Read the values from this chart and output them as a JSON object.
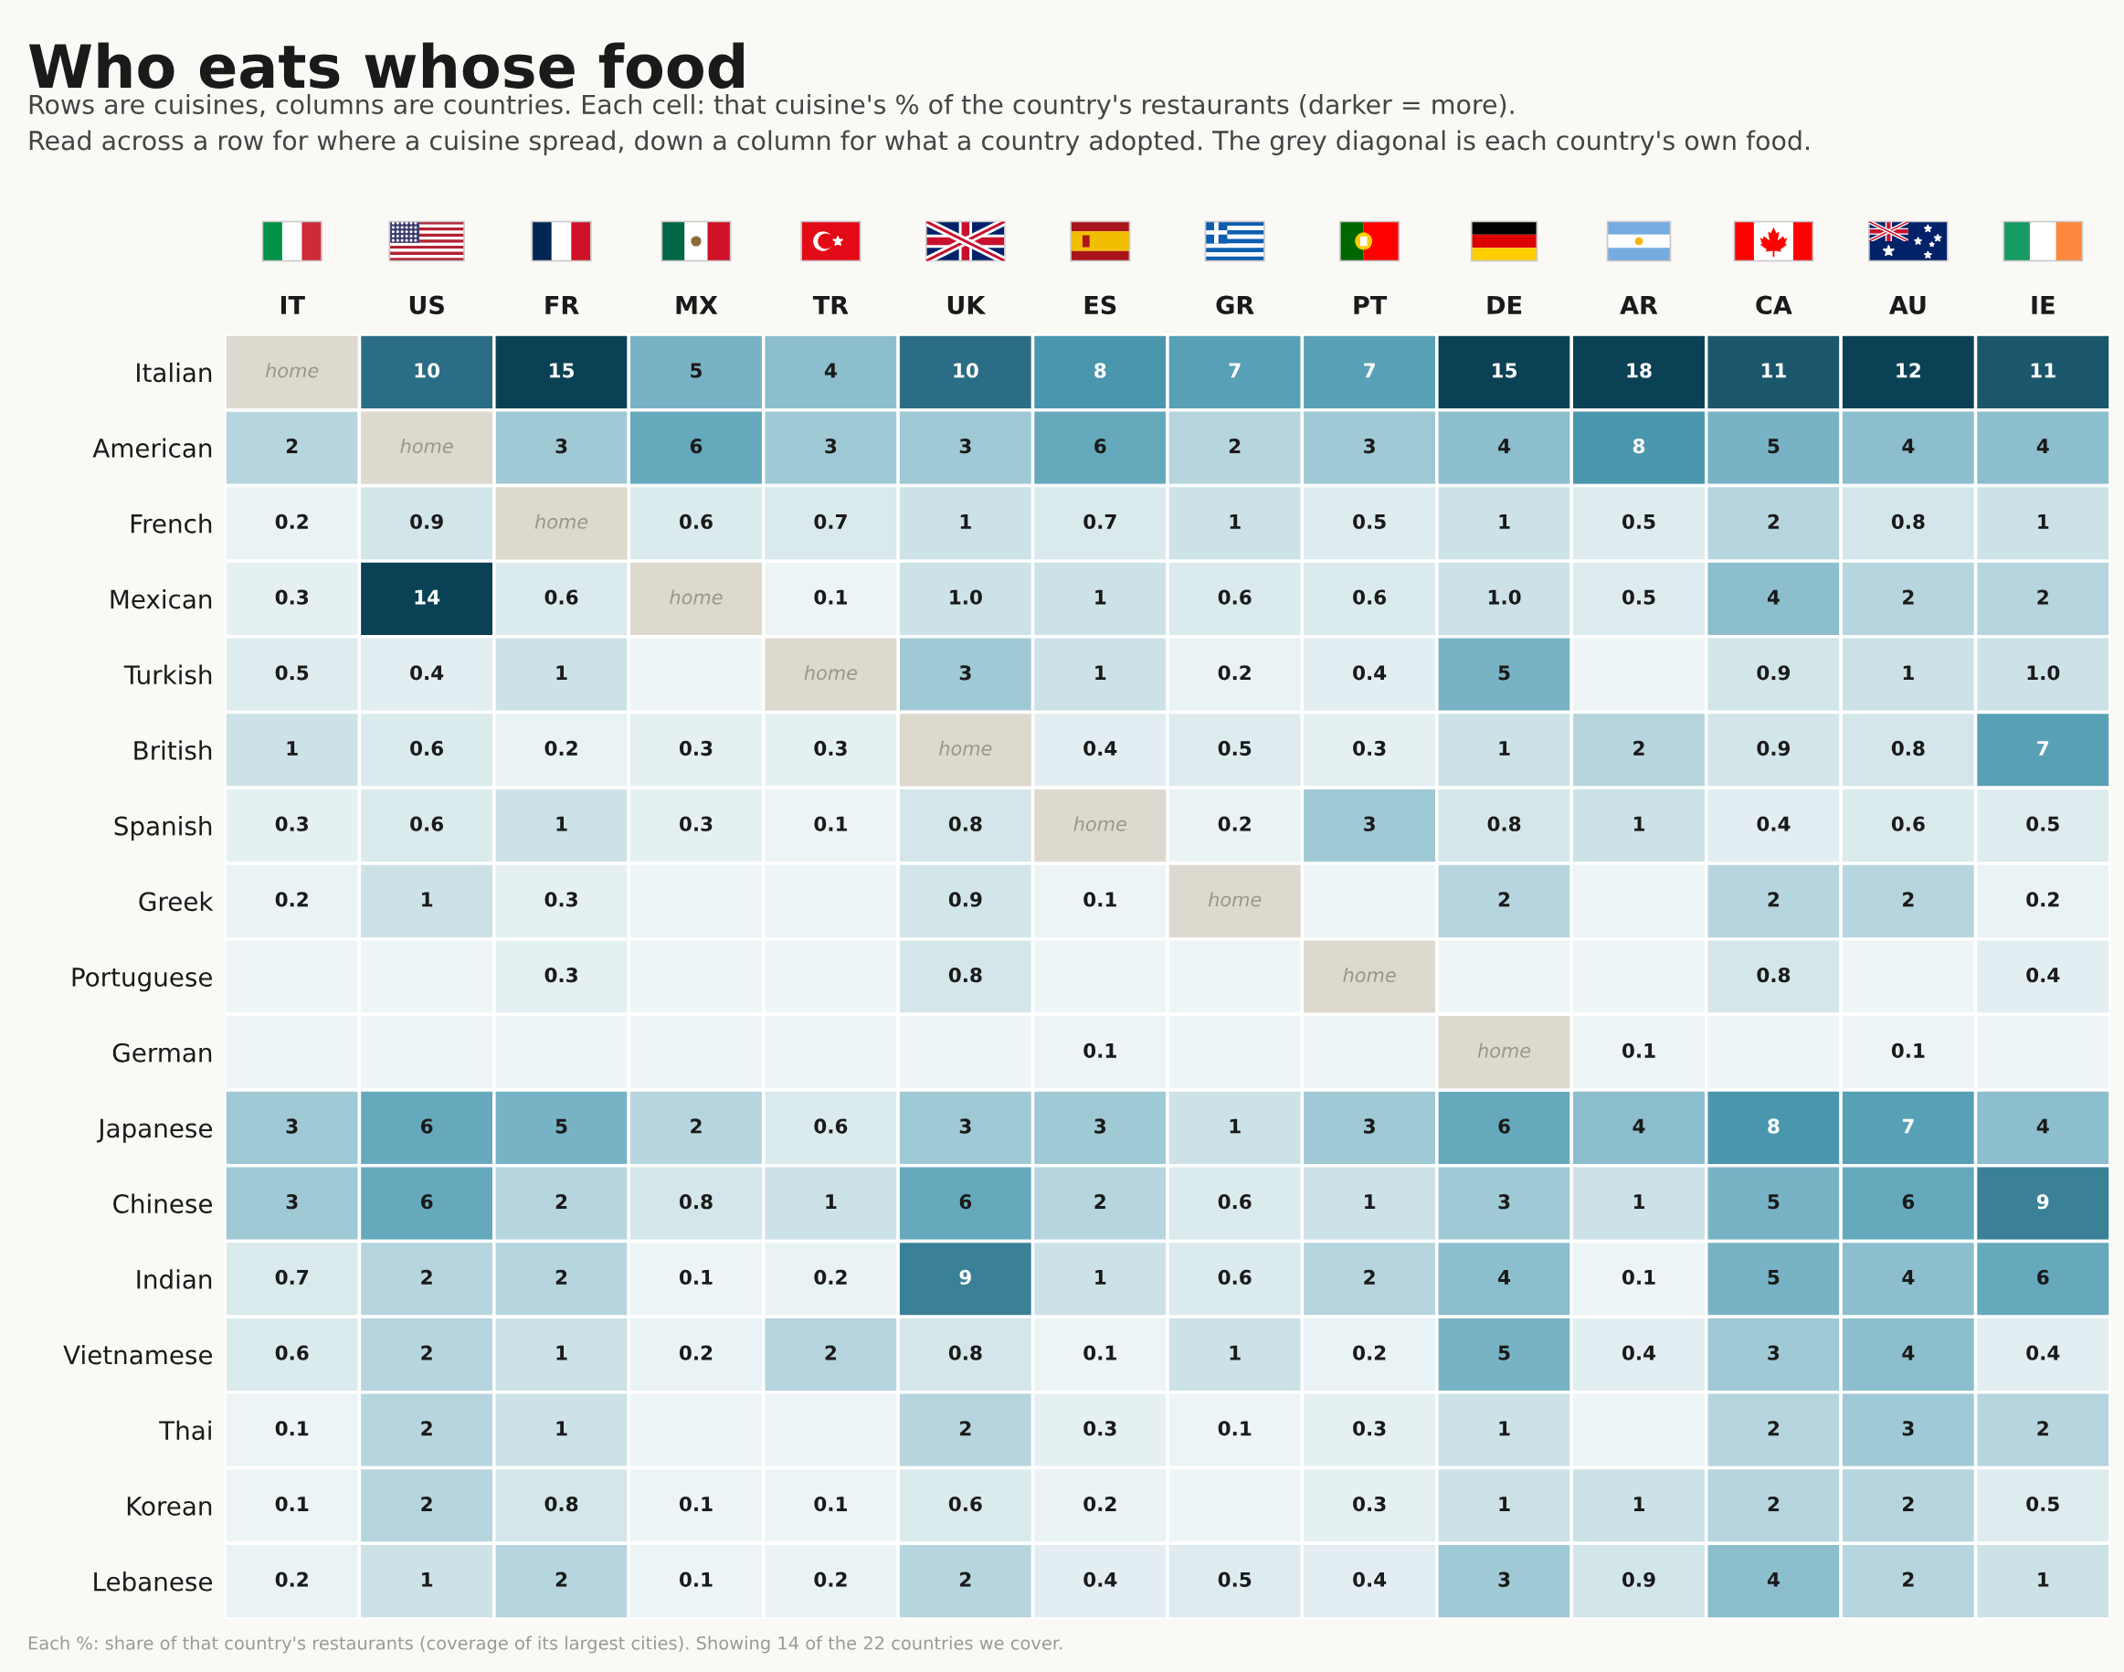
{
  "chart_data": {
    "type": "heatmap",
    "title": "Who eats whose food",
    "subtitle": "Rows are cuisines, columns are countries. Each cell: that cuisine's % of the country's restaurants (darker = more).\nRead across a row for where a cuisine spread, down a column for what a country adopted. The grey diagonal is each country's own food.",
    "annotations": [
      "Each %: share of that country's restaurants (coverage of its largest cities). Showing 14 of the 22 countries we cover."
    ],
    "categories": [
      "IT",
      "US",
      "FR",
      "MX",
      "TR",
      "UK",
      "ES",
      "GR",
      "PT",
      "DE",
      "AR",
      "CA",
      "AU",
      "IE"
    ],
    "y_categories": [
      "Italian",
      "American",
      "French",
      "Mexican",
      "Turkish",
      "British",
      "Spanish",
      "Greek",
      "Portuguese",
      "German",
      "Japanese",
      "Chinese",
      "Indian",
      "Vietnamese",
      "Thai",
      "Korean",
      "Lebanese"
    ],
    "cells": [
      [
        null,
        10,
        15,
        5,
        4,
        10,
        8,
        7,
        7,
        15,
        18,
        11,
        12,
        11
      ],
      [
        2,
        null,
        3,
        6,
        3,
        3,
        6,
        2,
        3,
        4,
        8,
        5,
        4,
        4
      ],
      [
        0.2,
        0.9,
        null,
        0.6,
        0.7,
        1,
        0.7,
        1,
        0.5,
        1,
        0.5,
        2,
        0.8,
        1
      ],
      [
        0.3,
        14,
        0.6,
        null,
        0.1,
        1.0,
        1,
        0.6,
        0.6,
        1.0,
        0.5,
        4,
        2,
        2
      ],
      [
        0.5,
        0.4,
        1,
        null,
        null,
        3,
        1,
        0.2,
        0.4,
        5,
        null,
        0.9,
        1,
        1.0
      ],
      [
        1,
        0.6,
        0.2,
        0.3,
        0.3,
        null,
        0.4,
        0.5,
        0.3,
        1,
        2,
        0.9,
        0.8,
        7
      ],
      [
        0.3,
        0.6,
        1,
        0.3,
        0.1,
        0.8,
        null,
        0.2,
        3,
        0.8,
        1,
        0.4,
        0.6,
        0.5
      ],
      [
        0.2,
        1,
        0.3,
        null,
        null,
        0.9,
        0.1,
        null,
        null,
        2,
        null,
        2,
        2,
        0.2
      ],
      [
        null,
        null,
        0.3,
        null,
        null,
        0.8,
        null,
        null,
        null,
        null,
        null,
        0.8,
        null,
        0.4
      ],
      [
        null,
        null,
        null,
        null,
        null,
        null,
        0.1,
        null,
        null,
        null,
        0.1,
        null,
        0.1,
        null
      ],
      [
        3,
        6,
        5,
        2,
        0.6,
        3,
        3,
        1,
        3,
        6,
        4,
        8,
        7,
        4
      ],
      [
        3,
        6,
        2,
        0.8,
        1,
        6,
        2,
        0.6,
        1,
        3,
        1,
        5,
        6,
        9
      ],
      [
        0.7,
        2,
        2,
        0.1,
        0.2,
        9,
        1,
        0.6,
        2,
        4,
        0.1,
        5,
        4,
        6
      ],
      [
        0.6,
        2,
        1,
        0.2,
        2,
        0.8,
        0.1,
        1,
        0.2,
        5,
        0.4,
        3,
        4,
        0.4
      ],
      [
        0.1,
        2,
        1,
        null,
        null,
        2,
        0.3,
        0.1,
        0.3,
        1,
        null,
        2,
        3,
        2
      ],
      [
        0.1,
        2,
        0.8,
        0.1,
        0.1,
        0.6,
        0.2,
        null,
        0.3,
        1,
        1,
        2,
        2,
        0.5
      ],
      [
        0.2,
        1,
        2,
        0.1,
        0.2,
        2,
        0.4,
        0.5,
        0.4,
        3,
        0.9,
        4,
        2,
        1
      ]
    ],
    "cell_labels": [
      [
        "home",
        "10",
        "15",
        "5",
        "4",
        "10",
        "8",
        "7",
        "7",
        "15",
        "18",
        "11",
        "12",
        "11"
      ],
      [
        "2",
        "home",
        "3",
        "6",
        "3",
        "3",
        "6",
        "2",
        "3",
        "4",
        "8",
        "5",
        "4",
        "4"
      ],
      [
        "0.2",
        "0.9",
        "home",
        "0.6",
        "0.7",
        "1",
        "0.7",
        "1",
        "0.5",
        "1",
        "0.5",
        "2",
        "0.8",
        "1"
      ],
      [
        "0.3",
        "14",
        "0.6",
        "home",
        "0.1",
        "1.0",
        "1",
        "0.6",
        "0.6",
        "1.0",
        "0.5",
        "4",
        "2",
        "2"
      ],
      [
        "0.5",
        "0.4",
        "1",
        null,
        "home",
        "3",
        "1",
        "0.2",
        "0.4",
        "5",
        null,
        "0.9",
        "1",
        "1.0"
      ],
      [
        "1",
        "0.6",
        "0.2",
        "0.3",
        "0.3",
        "home",
        "0.4",
        "0.5",
        "0.3",
        "1",
        "2",
        "0.9",
        "0.8",
        "7"
      ],
      [
        "0.3",
        "0.6",
        "1",
        "0.3",
        "0.1",
        "0.8",
        "home",
        "0.2",
        "3",
        "0.8",
        "1",
        "0.4",
        "0.6",
        "0.5"
      ],
      [
        "0.2",
        "1",
        "0.3",
        null,
        null,
        "0.9",
        "0.1",
        "home",
        null,
        "2",
        null,
        "2",
        "2",
        "0.2"
      ],
      [
        null,
        null,
        "0.3",
        null,
        null,
        "0.8",
        null,
        null,
        "home",
        null,
        null,
        "0.8",
        null,
        "0.4"
      ],
      [
        null,
        null,
        null,
        null,
        null,
        null,
        "0.1",
        null,
        null,
        "home",
        "0.1",
        null,
        "0.1",
        null
      ],
      [
        "3",
        "6",
        "5",
        "2",
        "0.6",
        "3",
        "3",
        "1",
        "3",
        "6",
        "4",
        "8",
        "7",
        "4"
      ],
      [
        "3",
        "6",
        "2",
        "0.8",
        "1",
        "6",
        "2",
        "0.6",
        "1",
        "3",
        "1",
        "5",
        "6",
        "9"
      ],
      [
        "0.7",
        "2",
        "2",
        "0.1",
        "0.2",
        "9",
        "1",
        "0.6",
        "2",
        "4",
        "0.1",
        "5",
        "4",
        "6"
      ],
      [
        "0.6",
        "2",
        "1",
        "0.2",
        "2",
        "0.8",
        "0.1",
        "1",
        "0.2",
        "5",
        "0.4",
        "3",
        "4",
        "0.4"
      ],
      [
        "0.1",
        "2",
        "1",
        null,
        null,
        "2",
        "0.3",
        "0.1",
        "0.3",
        "1",
        null,
        "2",
        "3",
        "2"
      ],
      [
        "0.1",
        "2",
        "0.8",
        "0.1",
        "0.1",
        "0.6",
        "0.2",
        null,
        "0.3",
        "1",
        "1",
        "2",
        "2",
        "0.5"
      ],
      [
        "0.2",
        "1",
        "2",
        "0.1",
        "0.2",
        "2",
        "0.4",
        "0.5",
        "0.4",
        "3",
        "0.9",
        "4",
        "2",
        "1"
      ]
    ]
  }
}
